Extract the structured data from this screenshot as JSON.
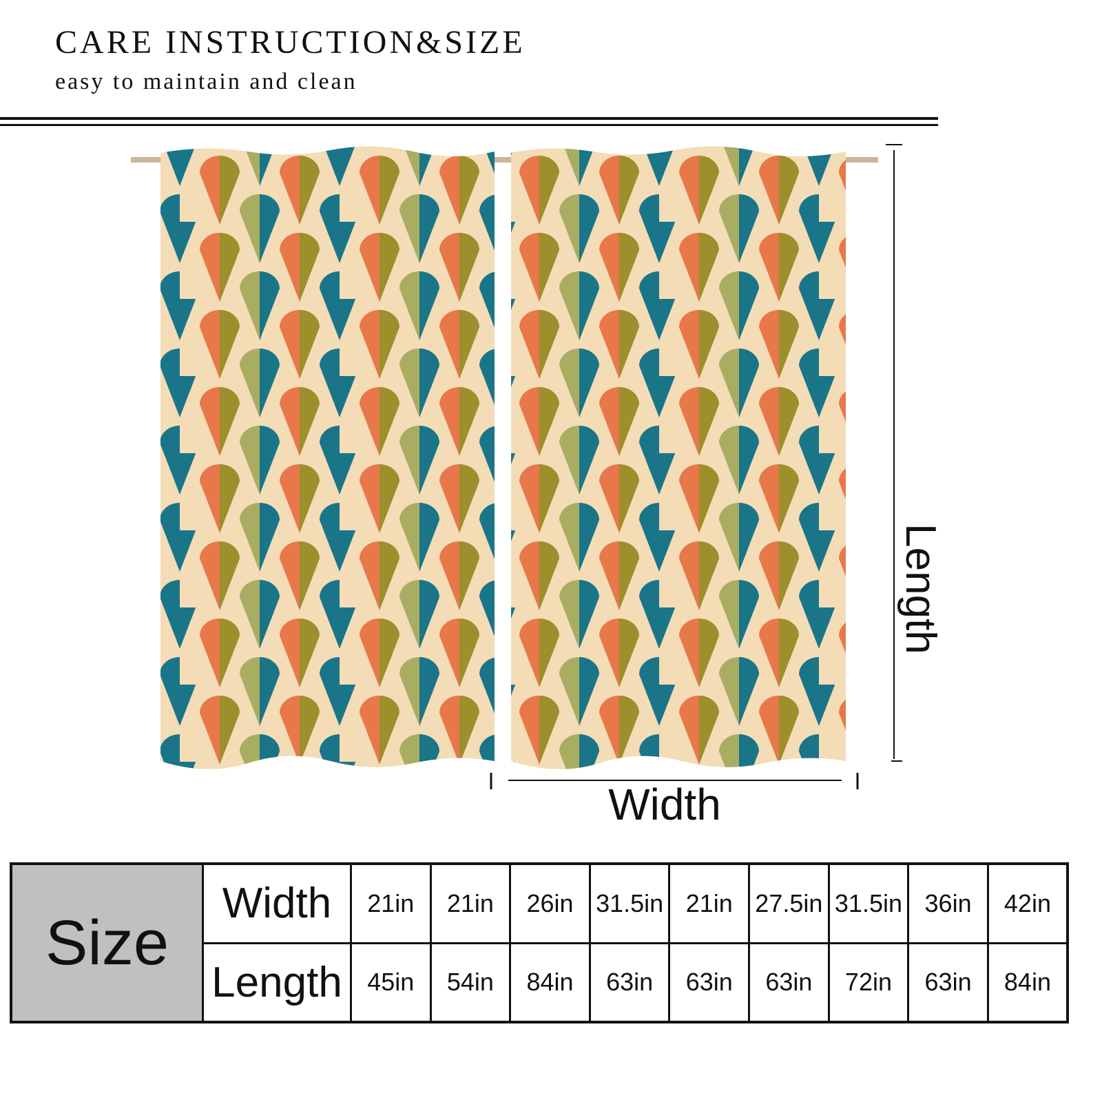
{
  "header": {
    "title": "CARE INSTRUCTION&SIZE",
    "subtitle": "easy to maintain and clean"
  },
  "diagram": {
    "length_label": "Length",
    "width_label": "Width"
  },
  "table": {
    "label": "Size",
    "row_headers": [
      "Width",
      "Length"
    ],
    "rows": [
      [
        "21in",
        "21in",
        "26in",
        "31.5in",
        "21in",
        "27.5in",
        "31.5in",
        "36in",
        "42in"
      ],
      [
        "45in",
        "54in",
        "84in",
        "63in",
        "63in",
        "63in",
        "72in",
        "63in",
        "84in"
      ]
    ]
  }
}
